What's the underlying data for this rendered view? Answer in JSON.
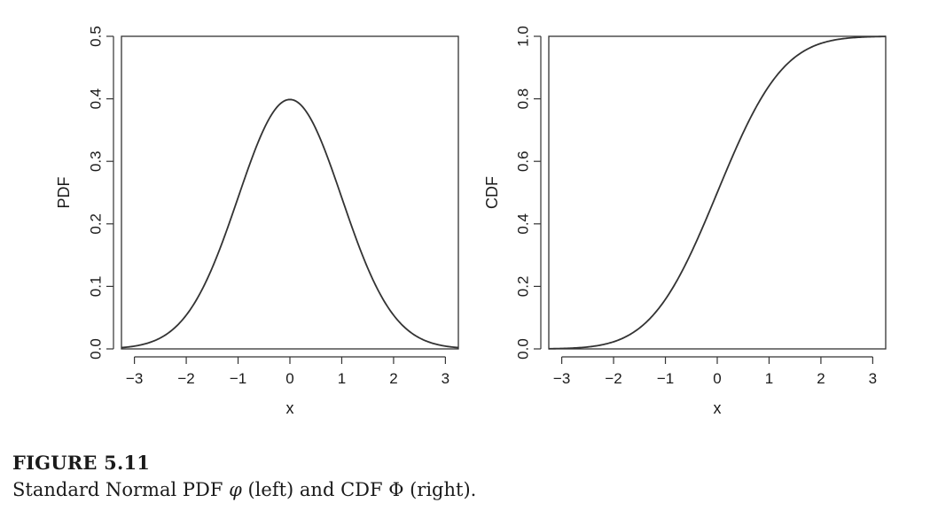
{
  "chart_data": [
    {
      "type": "line",
      "function": "standard normal pdf",
      "x": [
        -3.25,
        -3,
        -2.5,
        -2,
        -1.5,
        -1,
        -0.5,
        0,
        0.5,
        1,
        1.5,
        2,
        2.5,
        3,
        3.25
      ],
      "y": [
        0.002,
        0.0044,
        0.0175,
        0.054,
        0.1295,
        0.242,
        0.3521,
        0.3989,
        0.3521,
        0.242,
        0.1295,
        0.054,
        0.0175,
        0.0044,
        0.002
      ],
      "xlabel": "x",
      "ylabel": "PDF",
      "xlim": [
        -3.25,
        3.25
      ],
      "ylim": [
        0,
        0.5
      ],
      "xticks": [
        -3,
        -2,
        -1,
        0,
        1,
        2,
        3
      ],
      "xtick_labels": [
        "−3",
        "−2",
        "−1",
        "0",
        "1",
        "2",
        "3"
      ],
      "yticks": [
        0,
        0.1,
        0.2,
        0.3,
        0.4,
        0.5
      ],
      "ytick_labels": [
        "0.0",
        "0.1",
        "0.2",
        "0.3",
        "0.4",
        "0.5"
      ],
      "grid": false,
      "color": "#333333"
    },
    {
      "type": "line",
      "function": "standard normal cdf",
      "x": [
        -3.25,
        -3,
        -2.5,
        -2,
        -1.5,
        -1,
        -0.5,
        0,
        0.5,
        1,
        1.5,
        2,
        2.5,
        3,
        3.25
      ],
      "y": [
        0.0006,
        0.0013,
        0.0062,
        0.0228,
        0.0668,
        0.1587,
        0.3085,
        0.5,
        0.6915,
        0.8413,
        0.9332,
        0.9772,
        0.9938,
        0.9987,
        0.9994
      ],
      "xlabel": "x",
      "ylabel": "CDF",
      "xlim": [
        -3.25,
        3.25
      ],
      "ylim": [
        0,
        1
      ],
      "xticks": [
        -3,
        -2,
        -1,
        0,
        1,
        2,
        3
      ],
      "xtick_labels": [
        "−3",
        "−2",
        "−1",
        "0",
        "1",
        "2",
        "3"
      ],
      "yticks": [
        0,
        0.2,
        0.4,
        0.6,
        0.8,
        1.0
      ],
      "ytick_labels": [
        "0.0",
        "0.2",
        "0.4",
        "0.6",
        "0.8",
        "1.0"
      ],
      "grid": false,
      "color": "#333333"
    }
  ],
  "caption": {
    "label": "FIGURE 5.11",
    "text_before_phi": "Standard Normal PDF ",
    "phi_symbol": "φ",
    "text_middle": " (left) and CDF ",
    "Phi_symbol": "Φ",
    "text_after": " (right)."
  }
}
